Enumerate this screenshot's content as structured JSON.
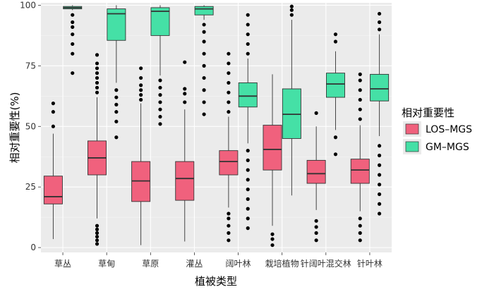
{
  "chart_data": {
    "type": "boxplot",
    "xlabel": "植被类型",
    "ylabel": "相对重要性(%)",
    "ylim": [
      -2,
      101
    ],
    "yticks": [
      0,
      25,
      50,
      75,
      100
    ],
    "grid": true,
    "legend": {
      "title": "相对重要性",
      "placement": "right",
      "entries": [
        "LOS–MGS",
        "GM–MGS"
      ]
    },
    "colors": {
      "LOS–MGS": "#F0617D",
      "GM–MGS": "#45E0A6",
      "panel": "#EBEBEB",
      "grid": "#FFFFFF"
    },
    "categories": [
      "草丛",
      "草甸",
      "草原",
      "灌丛",
      "阔叶林",
      "栽培植物",
      "针阔叶混交林",
      "针叶林"
    ],
    "series": [
      {
        "name": "LOS–MGS",
        "boxes": [
          {
            "whisker_low": 3.5,
            "q1": 18,
            "median": 21,
            "q3": 29.5,
            "whisker_high": 47,
            "outliers_low": [],
            "outliers_high": [
              50,
              56,
              59.5
            ]
          },
          {
            "whisker_low": 12,
            "q1": 30,
            "median": 37,
            "q3": 44,
            "whisker_high": 62,
            "outliers_low": [
              1.5,
              3,
              4.5,
              6,
              7.5,
              9
            ],
            "outliers_high": [
              64,
              66,
              68,
              70,
              72,
              74,
              76,
              79.5
            ]
          },
          {
            "whisker_low": 1,
            "q1": 19,
            "median": 27.5,
            "q3": 35.5,
            "whisker_high": 59.5,
            "outliers_low": [],
            "outliers_high": [
              61,
              63,
              65,
              67,
              70,
              74
            ]
          },
          {
            "whisker_low": 2.5,
            "q1": 19.5,
            "median": 28.5,
            "q3": 35.5,
            "whisker_high": 57,
            "outliers_low": [],
            "outliers_high": [
              60,
              63.5,
              65.5,
              76.5
            ]
          },
          {
            "whisker_low": 16.5,
            "q1": 30,
            "median": 35.5,
            "q3": 40,
            "whisker_high": 54,
            "outliers_low": [
              3,
              6,
              9,
              12,
              14
            ],
            "outliers_high": [
              56,
              60,
              64,
              68,
              72,
              76,
              80
            ]
          },
          {
            "whisker_low": 9,
            "q1": 32,
            "median": 40.5,
            "q3": 50.5,
            "whisker_high": 71.5,
            "outliers_low": [
              1,
              3.5,
              5.5
            ],
            "outliers_high": []
          },
          {
            "whisker_low": 15.5,
            "q1": 26.5,
            "median": 30.5,
            "q3": 36,
            "whisker_high": 50,
            "outliers_low": [
              3,
              6,
              8.5,
              11
            ],
            "outliers_high": [
              55.5
            ]
          },
          {
            "whisker_low": 15,
            "q1": 26.5,
            "median": 32,
            "q3": 36.5,
            "whisker_high": 50.5,
            "outliers_low": [
              3,
              6,
              9,
              12
            ],
            "outliers_high": [
              53,
              57,
              61,
              65,
              69,
              71.5
            ]
          }
        ]
      },
      {
        "name": "GM–MGS",
        "boxes": [
          {
            "whisker_low": 98,
            "q1": 98.5,
            "median": 99,
            "q3": 99.5,
            "whisker_high": 100,
            "outliers_low": [
              72,
              80,
              84,
              88,
              91,
              93,
              96
            ],
            "outliers_high": []
          },
          {
            "whisker_low": 68,
            "q1": 85.5,
            "median": 96.5,
            "q3": 98.5,
            "whisker_high": 100,
            "outliers_low": [
              45.5,
              52,
              56,
              59,
              62,
              65
            ],
            "outliers_high": []
          },
          {
            "whisker_low": 71,
            "q1": 87.5,
            "median": 97.5,
            "q3": 99,
            "whisker_high": 100,
            "outliers_low": [
              51,
              54,
              57,
              60,
              63,
              66,
              69
            ],
            "outliers_high": []
          },
          {
            "whisker_low": 94,
            "q1": 96,
            "median": 98.5,
            "q3": 99.5,
            "whisker_high": 100,
            "outliers_low": [
              55,
              60,
              65,
              70,
              75,
              80,
              85,
              89,
              92
            ],
            "outliers_high": []
          },
          {
            "whisker_low": 43,
            "q1": 58,
            "median": 62.5,
            "q3": 68,
            "whisker_high": 78,
            "outliers_low": [
              8,
              12,
              16,
              20,
              24,
              28,
              32,
              36,
              40
            ],
            "outliers_high": [
              80,
              84,
              88,
              92,
              96
            ]
          },
          {
            "whisker_low": 21.5,
            "q1": 45,
            "median": 55,
            "q3": 65.5,
            "whisker_high": 94,
            "outliers_low": [],
            "outliers_high": [
              96,
              98,
              99.5
            ]
          },
          {
            "whisker_low": 48.5,
            "q1": 62,
            "median": 67.5,
            "q3": 72,
            "whisker_high": 81,
            "outliers_low": [
              38.5,
              45.5
            ],
            "outliers_high": [
              85,
              88
            ]
          },
          {
            "whisker_low": 46,
            "q1": 60.5,
            "median": 65.5,
            "q3": 71.5,
            "whisker_high": 88,
            "outliers_low": [
              14,
              18,
              22,
              26,
              30,
              34,
              38,
              42
            ],
            "outliers_high": [
              90,
              93,
              96.5
            ]
          }
        ]
      }
    ]
  }
}
